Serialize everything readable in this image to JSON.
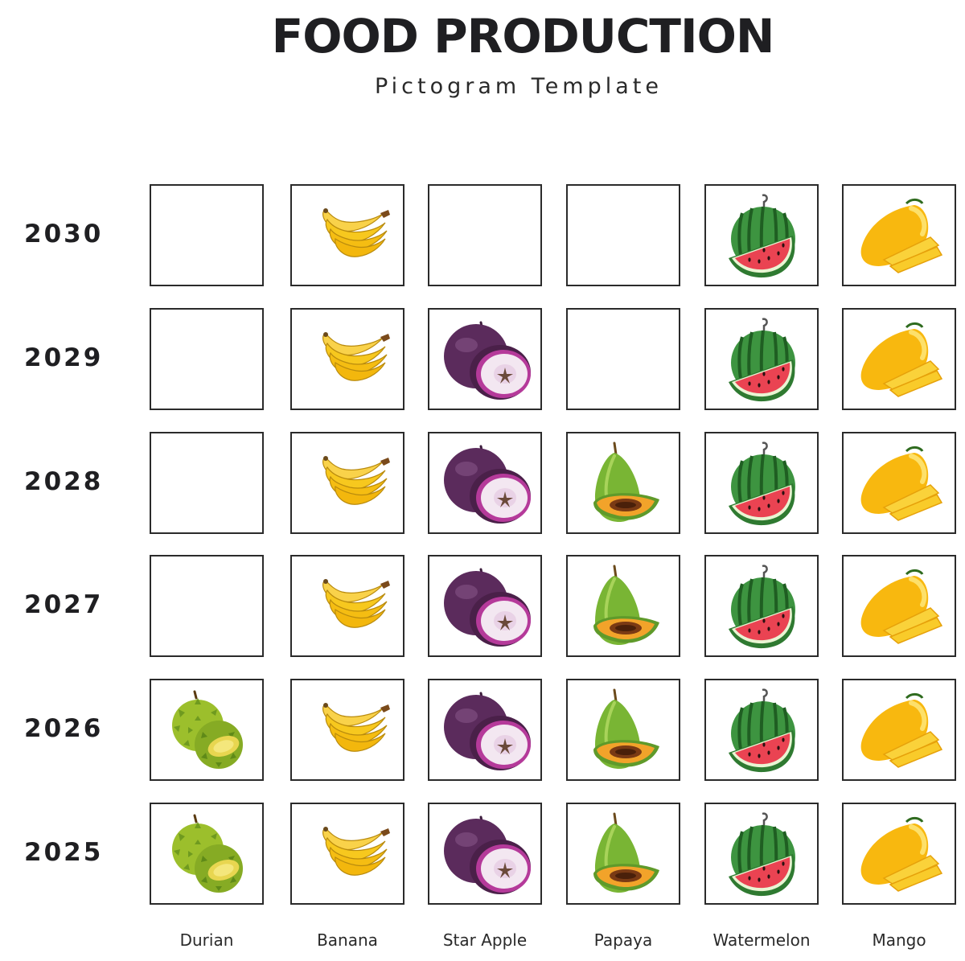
{
  "title": "FOOD PRODUCTION",
  "subtitle": "Pictogram Template",
  "colors": {
    "banana": "#f7c81e",
    "star_apple": "#5b2b5c",
    "papaya": "#79b534",
    "watermelon": "#3d9440",
    "mango": "#f8b80f",
    "durian": "#9cbf2c",
    "cell_border": "#2b2b2b"
  },
  "chart_data": {
    "type": "pictogram",
    "title": "FOOD PRODUCTION",
    "subtitle": "Pictogram Template",
    "categories": [
      "Durian",
      "Banana",
      "Star Apple",
      "Papaya",
      "Watermelon",
      "Mango"
    ],
    "icons": [
      "durian-icon",
      "banana-icon",
      "star-apple-icon",
      "papaya-icon",
      "watermelon-icon",
      "mango-icon"
    ],
    "years": [
      "2030",
      "2029",
      "2028",
      "2027",
      "2026",
      "2025"
    ],
    "values": [
      2,
      6,
      5,
      4,
      6,
      6
    ]
  }
}
